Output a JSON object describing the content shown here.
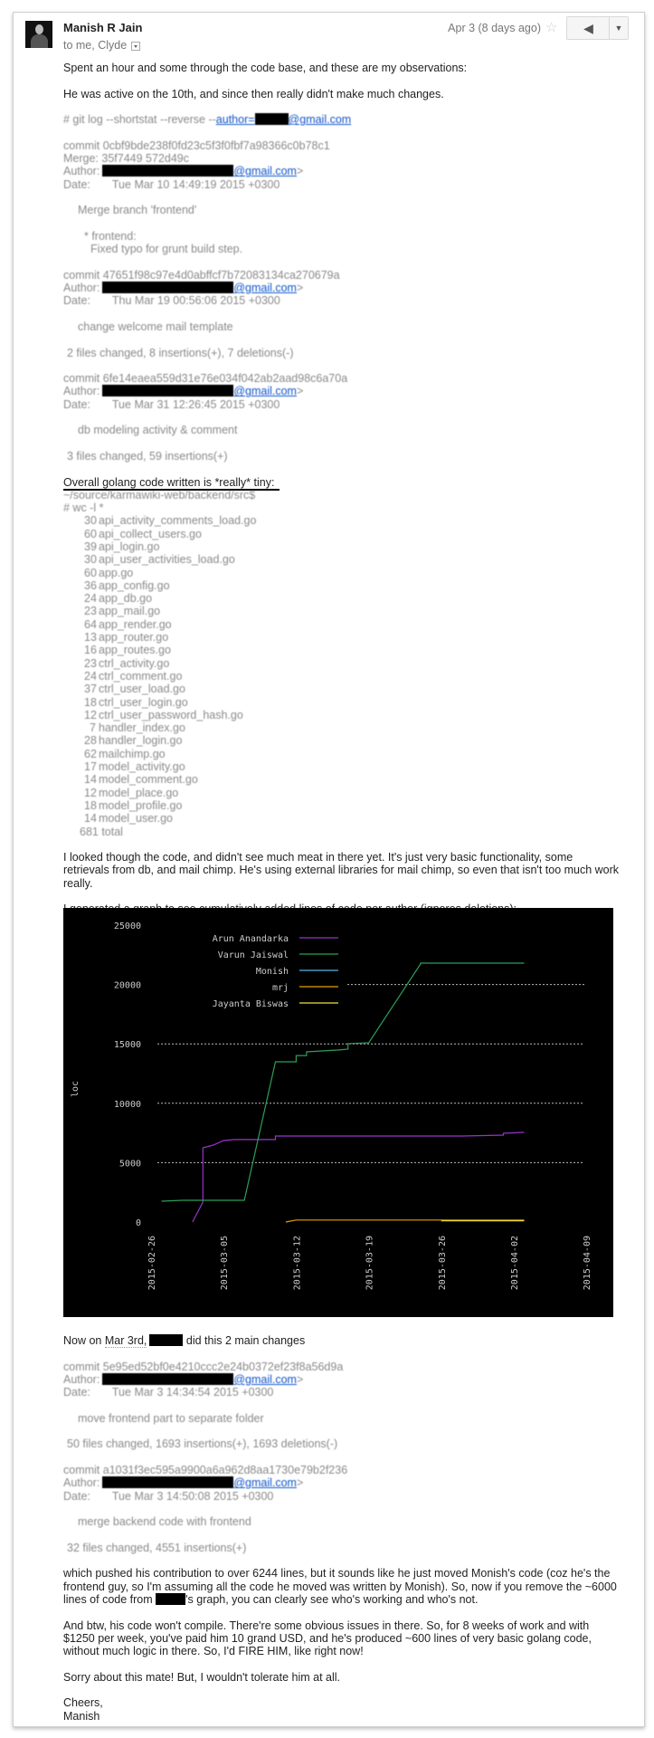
{
  "header": {
    "sender": "Manish R Jain",
    "recipients": "to me, Clyde",
    "date": "Apr 3 (8 days ago)",
    "icons": {
      "star": "star-icon",
      "reply": "reply-icon",
      "more": "chevron-down-icon"
    }
  },
  "body": {
    "intro": "Spent an hour and some through the code base, and these are my observations:",
    "active": "He was active on the 10th, and since then really didn't make much changes.",
    "gitlog_prefix": "# git log --shortstat --reverse --",
    "gitlog_link_a": "author=",
    "gitlog_link_b": "@gmail.com",
    "author_label": "Author:",
    "date_label": "Date:",
    "gmail": "@gmail.com",
    "gt": ">",
    "commits": [
      {
        "hash": "commit 0cbf9bde238f0fd23c5f3f0fbf7a98366c0b78c1",
        "merge": "Merge: 35f7449 572d49c",
        "date": "Tue Mar 10 14:49:19 2015 +0300",
        "msg": [
          "Merge branch 'frontend'",
          "",
          "* frontend:",
          "  Fixed typo for grunt build step."
        ],
        "stat": ""
      },
      {
        "hash": "commit 47651f98c97e4d0abffcf7b72083134ca270679a",
        "date": "Thu Mar 19 00:56:06 2015 +0300",
        "msg": [
          "change welcome mail template"
        ],
        "stat": "2 files changed, 8 insertions(+), 7 deletions(-)"
      },
      {
        "hash": "commit 6fe14eaea559d31e76e034f042ab2aad98c6a70a",
        "date": "Tue Mar 31 12:26:45 2015 +0300",
        "msg": [
          "db modeling activity & comment"
        ],
        "stat": "3 files changed, 59 insertions(+)"
      }
    ],
    "overall": "Overall golang code written is *really* tiny:",
    "path": "~/source/karmawiki-web/backend/src$",
    "wc": "# wc -l *",
    "files": [
      {
        "n": "30",
        "f": "api_activity_comments_load.go"
      },
      {
        "n": "60",
        "f": "api_collect_users.go"
      },
      {
        "n": "39",
        "f": "api_login.go"
      },
      {
        "n": "30",
        "f": "api_user_activities_load.go"
      },
      {
        "n": "60",
        "f": "app.go"
      },
      {
        "n": "36",
        "f": "app_config.go"
      },
      {
        "n": "24",
        "f": "app_db.go"
      },
      {
        "n": "23",
        "f": "app_mail.go"
      },
      {
        "n": "64",
        "f": "app_render.go"
      },
      {
        "n": "13",
        "f": "app_router.go"
      },
      {
        "n": "16",
        "f": "app_routes.go"
      },
      {
        "n": "23",
        "f": "ctrl_activity.go"
      },
      {
        "n": "24",
        "f": "ctrl_comment.go"
      },
      {
        "n": "37",
        "f": "ctrl_user_load.go"
      },
      {
        "n": "18",
        "f": "ctrl_user_login.go"
      },
      {
        "n": "12",
        "f": "ctrl_user_password_hash.go"
      },
      {
        "n": "7",
        "f": "handler_index.go"
      },
      {
        "n": "28",
        "f": "handler_login.go"
      },
      {
        "n": "62",
        "f": "mailchimp.go"
      },
      {
        "n": "17",
        "f": "model_activity.go"
      },
      {
        "n": "14",
        "f": "model_comment.go"
      },
      {
        "n": "12",
        "f": "model_place.go"
      },
      {
        "n": "18",
        "f": "model_profile.go"
      },
      {
        "n": "14",
        "f": "model_user.go"
      }
    ],
    "total": "681 total",
    "looked": "I looked though the code, and didn't see much meat in there yet. It's just very basic functionality, some retrievals from db, and mail chimp. He's using external libraries for mail chimp, so even that isn't too much work really.",
    "graph_intro": "I generated a graph to see cumulatively added lines of code per author (ignores deletions):",
    "now_a": "Now on ",
    "now_date": "Mar 3rd,",
    "now_b": " did this 2 main changes",
    "commits2": [
      {
        "hash": "commit 5e95ed52bf0e4210ccc2e24b0372ef23f8a56d9a",
        "date": "Tue Mar 3 14:34:54 2015 +0300",
        "msg": "move frontend part to separate folder",
        "stat": "50 files changed, 1693 insertions(+), 1693 deletions(-)"
      },
      {
        "hash": "commit a1031f3ec595a9900a6a962d8aa1730e79b2f236",
        "date": "Tue Mar 3 14:50:08 2015 +0300",
        "msg": "merge backend code with frontend",
        "stat": "32 files changed, 4551 insertions(+)"
      }
    ],
    "pushed_a": "which pushed his contribution to over 6244 lines, but it sounds like he just moved Monish's code (coz he's the frontend guy, so I'm assuming all the code he moved was written by Monish). So, now if you remove the ~6000 lines of code from ",
    "pushed_b": "'s graph, you can clearly see who's working and who's not.",
    "btw": "And btw, his code won't compile. There're some obvious issues in there. So, for 8 weeks of work and with $1250 per week, you've paid him 10 grand USD, and he's produced ~600 lines of very basic golang code, without much logic in there. So, I'd FIRE HIM, like right now!",
    "sorry": "Sorry about this mate! But, I wouldn't tolerate him at all.",
    "cheers": "Cheers,",
    "signoff": "Manish"
  },
  "colors": {
    "link": "#1155cc",
    "chart_bg": "#000000",
    "code_text": "#8a8a8a"
  },
  "chart_data": {
    "type": "line",
    "title": "",
    "xlabel": "",
    "ylabel": "loc",
    "ylim": [
      0,
      25000
    ],
    "yticks": [
      0,
      5000,
      10000,
      15000,
      20000,
      25000
    ],
    "xticks": [
      "2015-02-26",
      "2015-03-05",
      "2015-03-12",
      "2015-03-19",
      "2015-03-26",
      "2015-04-02",
      "2015-04-09"
    ],
    "grid": "horizontal-dotted",
    "legend": "top-left",
    "series": [
      {
        "name": "Arun Anandarka",
        "color": "#9933cc",
        "points": [
          [
            "2015-03-02",
            0
          ],
          [
            "2015-03-03",
            1680
          ],
          [
            "2015-03-03",
            6250
          ],
          [
            "2015-03-04",
            6480
          ],
          [
            "2015-03-05",
            6860
          ],
          [
            "2015-03-06",
            6940
          ],
          [
            "2015-03-10",
            6940
          ],
          [
            "2015-03-10",
            7240
          ],
          [
            "2015-03-28",
            7240
          ],
          [
            "2015-04-01",
            7320
          ],
          [
            "2015-04-01",
            7470
          ],
          [
            "2015-04-03",
            7550
          ]
        ]
      },
      {
        "name": "Varun Jaiswal",
        "color": "#2e9e5b",
        "points": [
          [
            "2015-02-27",
            1750
          ],
          [
            "2015-03-01",
            1830
          ],
          [
            "2015-03-07",
            1830
          ],
          [
            "2015-03-10",
            13490
          ],
          [
            "2015-03-12",
            13490
          ],
          [
            "2015-03-12",
            14020
          ],
          [
            "2015-03-13",
            14020
          ],
          [
            "2015-03-13",
            14330
          ],
          [
            "2015-03-16",
            14480
          ],
          [
            "2015-03-17",
            14560
          ],
          [
            "2015-03-17",
            15020
          ],
          [
            "2015-03-19",
            15090
          ],
          [
            "2015-03-24",
            21720
          ],
          [
            "2015-03-24",
            21800
          ],
          [
            "2015-04-03",
            21800
          ]
        ]
      },
      {
        "name": "Monish",
        "color": "#56b4e9",
        "points": []
      },
      {
        "name": "mrj",
        "color": "#e69f00",
        "points": [
          [
            "2015-03-11",
            0
          ],
          [
            "2015-03-12",
            170
          ],
          [
            "2015-04-03",
            170
          ]
        ]
      },
      {
        "name": "Jayanta Biswas",
        "color": "#f0e442",
        "points": [
          [
            "2015-03-26",
            100
          ],
          [
            "2015-04-03",
            100
          ]
        ]
      }
    ]
  }
}
